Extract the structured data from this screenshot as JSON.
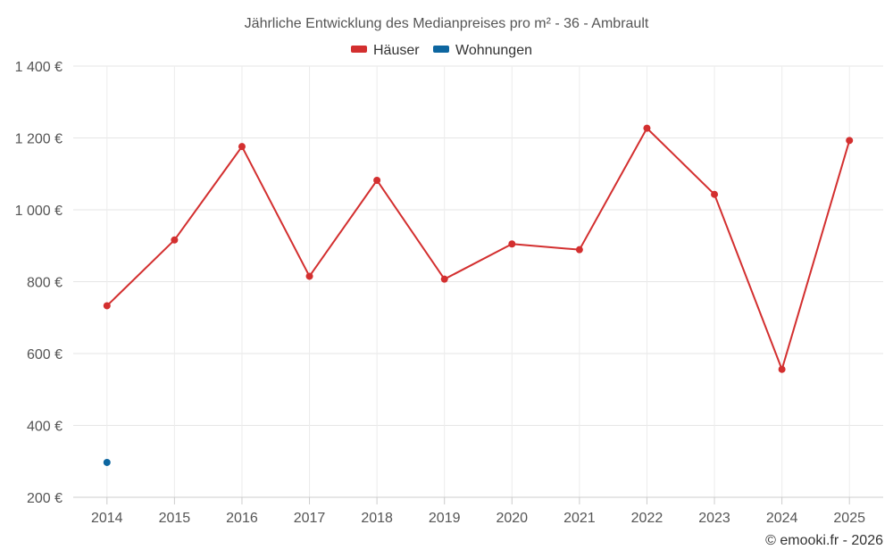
{
  "chart_data": {
    "type": "line",
    "title": "Jährliche Entwicklung des Medianpreises pro m² - 36 - Ambrault",
    "categories": [
      "2014",
      "2015",
      "2016",
      "2017",
      "2018",
      "2019",
      "2020",
      "2021",
      "2022",
      "2023",
      "2024",
      "2025"
    ],
    "series": [
      {
        "name": "Häuser",
        "color": "#d32f2f",
        "values": [
          733,
          916,
          1176,
          815,
          1082,
          807,
          905,
          889,
          1227,
          1043,
          556,
          1193
        ]
      },
      {
        "name": "Wohnungen",
        "color": "#0d66a0",
        "values": [
          297,
          null,
          null,
          null,
          null,
          null,
          null,
          null,
          null,
          null,
          null,
          null
        ]
      }
    ],
    "ylim": [
      200,
      1400
    ],
    "yticks": [
      200,
      400,
      600,
      800,
      1000,
      1200,
      1400
    ],
    "ytick_labels": [
      "200 €",
      "400 €",
      "600 €",
      "800 €",
      "1 000 €",
      "1 200 €",
      "1 400 €"
    ],
    "grid": true,
    "legend_position": "top-center"
  },
  "credit": "© emooki.fr - 2026"
}
